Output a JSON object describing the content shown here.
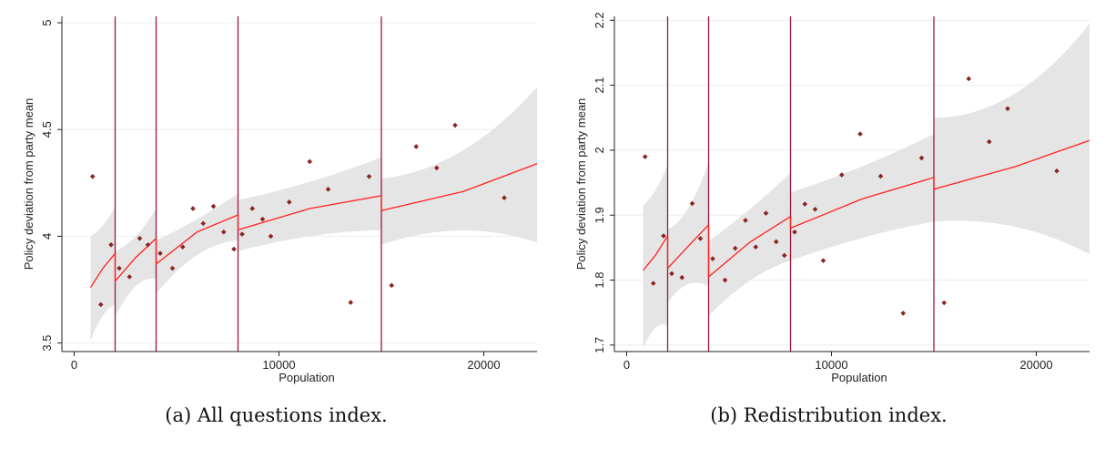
{
  "chart_data": [
    {
      "type": "scatter",
      "caption": "(a) All questions index.",
      "xlabel": "Population",
      "ylabel": "Policy deviation from party mean",
      "xlim": [
        -600,
        22600
      ],
      "ylim": [
        3.46,
        5.03
      ],
      "xticks": [
        0,
        10000,
        20000
      ],
      "xtick_labels": [
        "0",
        "10000",
        "20000"
      ],
      "yticks": [
        3.5,
        4,
        4.5,
        5
      ],
      "ytick_labels": [
        "3.5",
        "4",
        "4.5",
        "5"
      ],
      "grid": true,
      "cutoffs": [
        2000,
        4000,
        8000,
        15000
      ],
      "points": [
        [
          900,
          4.28
        ],
        [
          1300,
          3.68
        ],
        [
          1800,
          3.96
        ],
        [
          2200,
          3.85
        ],
        [
          2700,
          3.81
        ],
        [
          3200,
          3.99
        ],
        [
          3600,
          3.96
        ],
        [
          4200,
          3.92
        ],
        [
          4800,
          3.85
        ],
        [
          5300,
          3.95
        ],
        [
          5800,
          4.13
        ],
        [
          6300,
          4.06
        ],
        [
          6800,
          4.14
        ],
        [
          7300,
          4.02
        ],
        [
          7800,
          3.94
        ],
        [
          8200,
          4.01
        ],
        [
          8700,
          4.13
        ],
        [
          9200,
          4.08
        ],
        [
          9600,
          4.0
        ],
        [
          10500,
          4.16
        ],
        [
          11500,
          4.35
        ],
        [
          12400,
          4.22
        ],
        [
          13500,
          3.69
        ],
        [
          14400,
          4.28
        ],
        [
          15500,
          3.77
        ],
        [
          16700,
          4.42
        ],
        [
          17700,
          4.32
        ],
        [
          18600,
          4.52
        ],
        [
          21000,
          4.18
        ]
      ],
      "fit_segments": [
        {
          "x": [
            800,
            1400,
            2000
          ],
          "y": [
            3.76,
            3.85,
            3.92
          ]
        },
        {
          "x": [
            2000,
            3000,
            4000
          ],
          "y": [
            3.79,
            3.9,
            3.99
          ]
        },
        {
          "x": [
            4000,
            6000,
            8000
          ],
          "y": [
            3.87,
            4.02,
            4.1
          ]
        },
        {
          "x": [
            8000,
            11500,
            15000
          ],
          "y": [
            4.03,
            4.13,
            4.19
          ]
        },
        {
          "x": [
            15000,
            19000,
            22600
          ],
          "y": [
            4.12,
            4.21,
            4.34
          ]
        }
      ],
      "ci_upper": [
        {
          "x": [
            800,
            1400,
            2000
          ],
          "y": [
            4.0,
            4.03,
            4.14
          ]
        },
        {
          "x": [
            2000,
            3000,
            4000
          ],
          "y": [
            3.93,
            3.97,
            4.13
          ]
        },
        {
          "x": [
            4000,
            6000,
            8000
          ],
          "y": [
            3.98,
            4.07,
            4.2
          ]
        },
        {
          "x": [
            8000,
            11500,
            15000
          ],
          "y": [
            4.17,
            4.24,
            4.37
          ]
        },
        {
          "x": [
            15000,
            19000,
            22600
          ],
          "y": [
            4.27,
            4.31,
            4.7
          ]
        }
      ],
      "ci_lower": [
        {
          "x": [
            800,
            1400,
            2000
          ],
          "y": [
            3.51,
            3.66,
            3.68
          ]
        },
        {
          "x": [
            2000,
            3000,
            4000
          ],
          "y": [
            3.62,
            3.82,
            3.8
          ]
        },
        {
          "x": [
            4000,
            6000,
            8000
          ],
          "y": [
            3.73,
            3.97,
            3.98
          ]
        },
        {
          "x": [
            8000,
            11500,
            15000
          ],
          "y": [
            3.93,
            4.02,
            4.03
          ]
        },
        {
          "x": [
            15000,
            19000,
            22600
          ],
          "y": [
            3.96,
            4.09,
            3.97
          ]
        }
      ]
    },
    {
      "type": "scatter",
      "caption": "(b) Redistribution index.",
      "xlabel": "Population",
      "ylabel": "Policy deviation from party mean",
      "xlim": [
        -600,
        22600
      ],
      "ylim": [
        1.69,
        2.206
      ],
      "xticks": [
        0,
        10000,
        20000
      ],
      "xtick_labels": [
        "0",
        "10000",
        "20000"
      ],
      "yticks": [
        1.7,
        1.8,
        1.9,
        2.0,
        2.1,
        2.2
      ],
      "ytick_labels": [
        "1.7",
        "1.8",
        "1.9",
        "2",
        "2.1",
        "2.2"
      ],
      "grid": true,
      "cutoffs": [
        2000,
        4000,
        8000,
        15000
      ],
      "points": [
        [
          900,
          1.99
        ],
        [
          1300,
          1.795
        ],
        [
          1800,
          1.868
        ],
        [
          2200,
          1.81
        ],
        [
          2700,
          1.804
        ],
        [
          3200,
          1.918
        ],
        [
          3600,
          1.864
        ],
        [
          4200,
          1.833
        ],
        [
          4800,
          1.8
        ],
        [
          5300,
          1.849
        ],
        [
          5800,
          1.892
        ],
        [
          6300,
          1.851
        ],
        [
          6800,
          1.903
        ],
        [
          7300,
          1.859
        ],
        [
          7700,
          1.838
        ],
        [
          8200,
          1.874
        ],
        [
          8700,
          1.917
        ],
        [
          9200,
          1.909
        ],
        [
          9600,
          1.83
        ],
        [
          10500,
          1.962
        ],
        [
          11400,
          2.025
        ],
        [
          12400,
          1.96
        ],
        [
          13500,
          1.749
        ],
        [
          14400,
          1.988
        ],
        [
          15500,
          1.765
        ],
        [
          16700,
          2.11
        ],
        [
          17700,
          2.013
        ],
        [
          18600,
          2.064
        ],
        [
          21000,
          1.968
        ]
      ],
      "fit_segments": [
        {
          "x": [
            800,
            1400,
            2000
          ],
          "y": [
            1.815,
            1.838,
            1.868
          ]
        },
        {
          "x": [
            2000,
            3000,
            4000
          ],
          "y": [
            1.818,
            1.852,
            1.885
          ]
        },
        {
          "x": [
            4000,
            6000,
            8000
          ],
          "y": [
            1.805,
            1.858,
            1.898
          ]
        },
        {
          "x": [
            8000,
            11500,
            15000
          ],
          "y": [
            1.88,
            1.925,
            1.958
          ]
        },
        {
          "x": [
            15000,
            19000,
            22600
          ],
          "y": [
            1.94,
            1.975,
            2.015
          ]
        }
      ],
      "ci_upper": [
        {
          "x": [
            800,
            1400,
            2000
          ],
          "y": [
            1.915,
            1.93,
            1.978
          ]
        },
        {
          "x": [
            2000,
            3000,
            4000
          ],
          "y": [
            1.878,
            1.892,
            1.98
          ]
        },
        {
          "x": [
            4000,
            6000,
            8000
          ],
          "y": [
            1.86,
            1.905,
            1.965
          ]
        },
        {
          "x": [
            8000,
            11500,
            15000
          ],
          "y": [
            1.935,
            1.97,
            2.025
          ]
        },
        {
          "x": [
            15000,
            19000,
            22600
          ],
          "y": [
            2.05,
            2.05,
            2.195
          ]
        }
      ],
      "ci_lower": [
        {
          "x": [
            800,
            1400,
            2000
          ],
          "y": [
            1.695,
            1.74,
            1.73
          ]
        },
        {
          "x": [
            2000,
            3000,
            4000
          ],
          "y": [
            1.765,
            1.81,
            1.79
          ]
        },
        {
          "x": [
            4000,
            6000,
            8000
          ],
          "y": [
            1.745,
            1.81,
            1.83
          ]
        },
        {
          "x": [
            8000,
            11500,
            15000
          ],
          "y": [
            1.83,
            1.87,
            1.89
          ]
        },
        {
          "x": [
            15000,
            19000,
            22600
          ],
          "y": [
            1.89,
            1.9,
            1.84
          ]
        }
      ]
    }
  ],
  "style": {
    "band": "#e5e5e5",
    "fit": "#ff2020",
    "point": "#8b2424",
    "cutoff": "#a3143c",
    "grid": "#e8eef2",
    "axis": "#222222"
  }
}
